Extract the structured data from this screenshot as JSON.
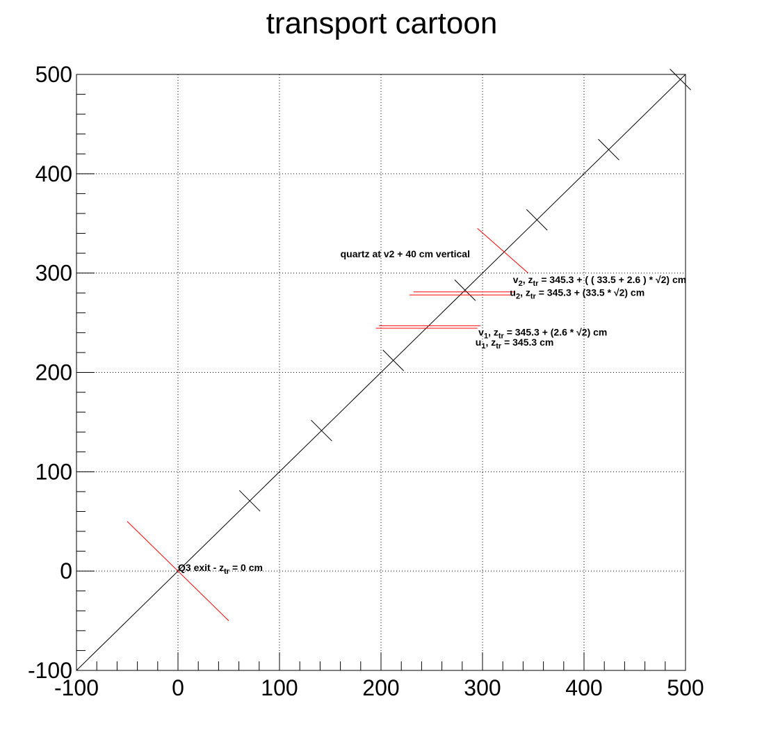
{
  "chart_data": {
    "type": "line",
    "title": "transport cartoon",
    "xlabel": "",
    "ylabel": "",
    "xlim": [
      -100,
      500
    ],
    "ylim": [
      -100,
      500
    ],
    "grid": true,
    "xticks": [
      -100,
      0,
      100,
      200,
      300,
      400,
      500
    ],
    "yticks": [
      -100,
      0,
      100,
      200,
      300,
      400,
      500
    ],
    "xtick_labels": [
      "-100",
      "0",
      "100",
      "200",
      "300",
      "400",
      "500"
    ],
    "ytick_labels": [
      "-100",
      "0",
      "100",
      "200",
      "300",
      "400",
      "500"
    ],
    "colors": {
      "axis": "#000000",
      "grid": "#000000",
      "trajectory": "#000000",
      "plane": "#ff0000"
    },
    "trajectory": {
      "x": [
        -100,
        500
      ],
      "y": [
        -100,
        500
      ]
    },
    "cross_markers": [
      {
        "x": 70.7,
        "y": 70.7
      },
      {
        "x": 141.4,
        "y": 141.4
      },
      {
        "x": 212.1,
        "y": 212.1
      },
      {
        "x": 282.8,
        "y": 282.8
      },
      {
        "x": 353.6,
        "y": 353.6
      },
      {
        "x": 424.3,
        "y": 424.3
      },
      {
        "x": 494.9,
        "y": 494.9
      }
    ],
    "segments": [
      {
        "name": "Q3 exit",
        "color": "#ff0000",
        "x": [
          -50,
          50
        ],
        "y": [
          50,
          -50
        ]
      },
      {
        "name": "quartz",
        "color": "#ff0000",
        "x": [
          295,
          345
        ],
        "y": [
          345,
          300
        ]
      },
      {
        "name": "u1",
        "color": "#ff0000",
        "x": [
          195,
          295
        ],
        "y": [
          244.5,
          244.5
        ]
      },
      {
        "name": "v1",
        "color": "#ff0000",
        "x": [
          198,
          298
        ],
        "y": [
          247,
          247
        ]
      },
      {
        "name": "u2",
        "color": "#ff0000",
        "x": [
          228,
          328
        ],
        "y": [
          278,
          278
        ]
      },
      {
        "name": "v2",
        "color": "#ff0000",
        "x": [
          232,
          332
        ],
        "y": [
          281,
          281
        ]
      }
    ],
    "annotations": [
      {
        "id": "q3",
        "x": 0,
        "y": 0,
        "parts": [
          {
            "t": "Q3 exit - z"
          },
          {
            "t": "tr",
            "sub": true
          },
          {
            "t": " = 0 cm"
          }
        ]
      },
      {
        "id": "quartz",
        "x": 160,
        "y": 316,
        "parts": [
          {
            "t": "quartz at v2 + 40 cm vertical"
          }
        ]
      },
      {
        "id": "v2",
        "x": 330,
        "y": 290,
        "parts": [
          {
            "t": "v"
          },
          {
            "t": "2",
            "sub": true
          },
          {
            "t": ", z"
          },
          {
            "t": "tr",
            "sub": true
          },
          {
            "t": " = 345.3 + ( ( 33.5 + 2.6 ) *  √2) cm"
          }
        ]
      },
      {
        "id": "u2",
        "x": 327,
        "y": 277,
        "parts": [
          {
            "t": "u"
          },
          {
            "t": "2",
            "sub": true
          },
          {
            "t": ", z"
          },
          {
            "t": "tr",
            "sub": true
          },
          {
            "t": " = 345.3 + (33.5 *  √2) cm"
          }
        ]
      },
      {
        "id": "v1",
        "x": 296,
        "y": 237,
        "parts": [
          {
            "t": "v"
          },
          {
            "t": "1",
            "sub": true
          },
          {
            "t": ", z"
          },
          {
            "t": "tr",
            "sub": true
          },
          {
            "t": " = 345.3 + (2.6 *  √2) cm"
          }
        ]
      },
      {
        "id": "u1",
        "x": 293,
        "y": 227,
        "parts": [
          {
            "t": "u"
          },
          {
            "t": "1",
            "sub": true
          },
          {
            "t": ", z"
          },
          {
            "t": "tr",
            "sub": true
          },
          {
            "t": " = 345.3 cm"
          }
        ]
      }
    ]
  }
}
